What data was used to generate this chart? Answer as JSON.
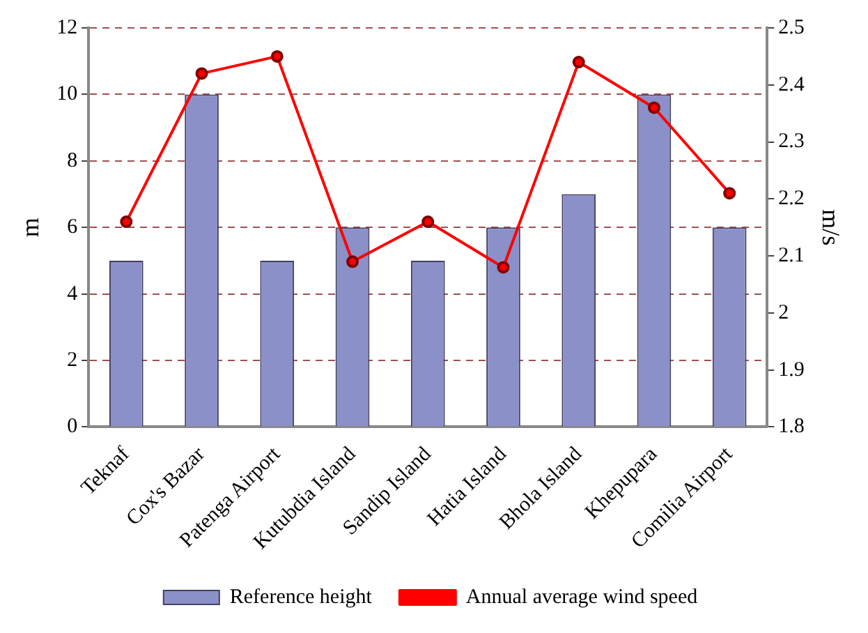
{
  "chart_data": {
    "type": "bar",
    "categories": [
      "Teknaf",
      "Cox's Bazar",
      "Patenga Airport",
      "Kutubdia Island",
      "Sandip Island",
      "Hatia Island",
      "Bhola Island",
      "Khepupara",
      "Comilia Airport"
    ],
    "series": [
      {
        "name": "Reference height",
        "color": "#8c90c8",
        "values": [
          5,
          10,
          5,
          6,
          5,
          6,
          7,
          10,
          6
        ]
      },
      {
        "name": "Annual average wind speed",
        "type": "line",
        "axis": "y2",
        "color": "#ff0000",
        "values": [
          2.16,
          2.42,
          2.45,
          2.09,
          2.16,
          2.08,
          2.44,
          2.36,
          2.21
        ]
      }
    ],
    "ylabel": "m",
    "y2label": "m/s",
    "ylim": [
      0,
      12
    ],
    "yticks": [
      0,
      2,
      4,
      6,
      8,
      10,
      12
    ],
    "y2lim": [
      1.8,
      2.5
    ],
    "y2ticks": [
      1.8,
      1.9,
      2,
      2.1,
      2.2,
      2.3,
      2.4,
      2.5
    ],
    "grid": "y",
    "legend": "bottom",
    "marker": "circle",
    "line_style": "solid"
  }
}
